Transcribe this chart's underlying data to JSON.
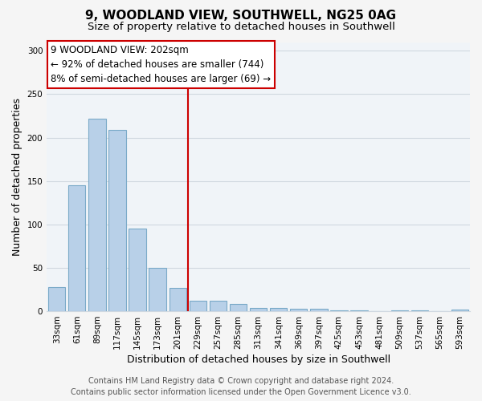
{
  "title": "9, WOODLAND VIEW, SOUTHWELL, NG25 0AG",
  "subtitle": "Size of property relative to detached houses in Southwell",
  "xlabel": "Distribution of detached houses by size in Southwell",
  "ylabel": "Number of detached properties",
  "bar_labels": [
    "33sqm",
    "61sqm",
    "89sqm",
    "117sqm",
    "145sqm",
    "173sqm",
    "201sqm",
    "229sqm",
    "257sqm",
    "285sqm",
    "313sqm",
    "341sqm",
    "369sqm",
    "397sqm",
    "425sqm",
    "453sqm",
    "481sqm",
    "509sqm",
    "537sqm",
    "565sqm",
    "593sqm"
  ],
  "bar_values": [
    28,
    145,
    222,
    209,
    95,
    50,
    27,
    12,
    12,
    8,
    4,
    4,
    3,
    3,
    1,
    1,
    0,
    1,
    1,
    0,
    2
  ],
  "bar_color": "#b8d0e8",
  "bar_edge_color": "#7aaac8",
  "marker_idx": 6,
  "marker_label": "9 WOODLAND VIEW: 202sqm",
  "annotation_line1": "← 92% of detached houses are smaller (744)",
  "annotation_line2": "8% of semi-detached houses are larger (69) →",
  "annotation_box_color": "#cc0000",
  "marker_line_color": "#cc0000",
  "ylim": [
    0,
    310
  ],
  "yticks": [
    0,
    50,
    100,
    150,
    200,
    250,
    300
  ],
  "footer_line1": "Contains HM Land Registry data © Crown copyright and database right 2024.",
  "footer_line2": "Contains public sector information licensed under the Open Government Licence v3.0.",
  "bg_color": "#f5f5f5",
  "plot_bg_color": "#f0f4f8",
  "grid_color": "#d0d8e0",
  "title_fontsize": 11,
  "subtitle_fontsize": 9.5,
  "axis_label_fontsize": 9,
  "tick_fontsize": 7.5,
  "footer_fontsize": 7,
  "annot_fontsize": 8.5
}
